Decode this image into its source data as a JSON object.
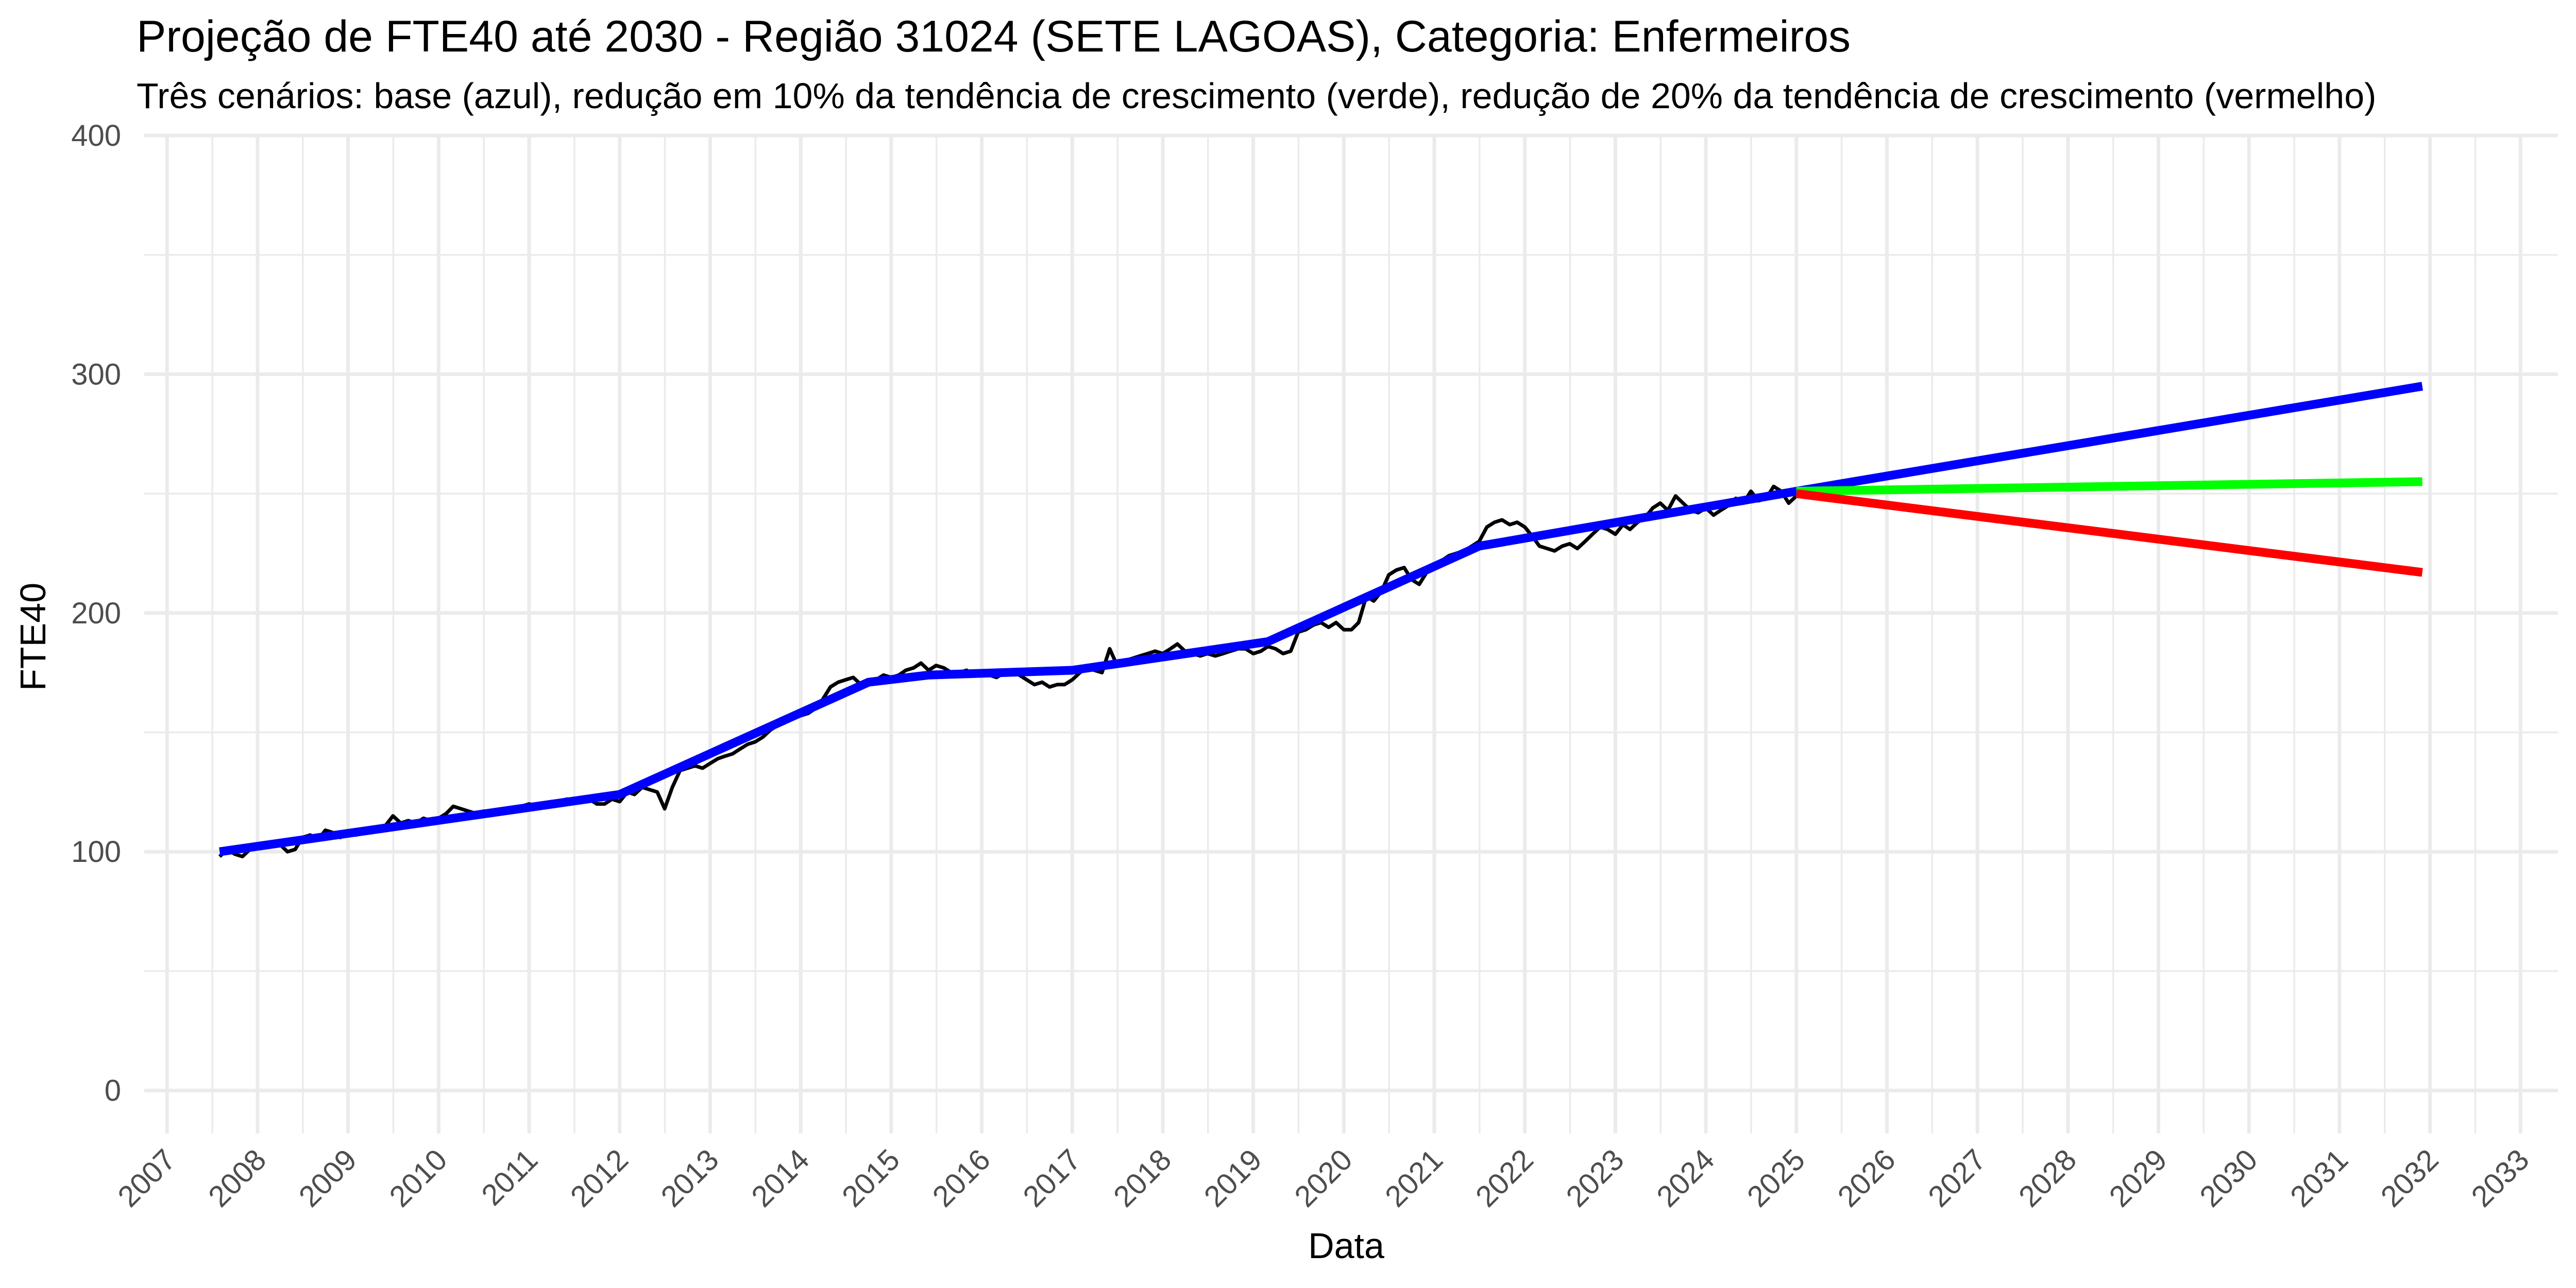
{
  "chart_data": {
    "type": "line",
    "title": "Projeção de FTE40 até 2030 - Região 31024 (SETE LAGOAS), Categoria: Enfermeiros",
    "subtitle": "Três cenários: base (azul), redução em 10% da tendência de crescimento (verde), redução de 20% da tendência de crescimento (vermelho)",
    "xlabel": "Data",
    "ylabel": "FTE40",
    "xlim": [
      "2006-10-01",
      "2033-06-01"
    ],
    "ylim": [
      -18,
      400
    ],
    "x_ticks": [
      "2007",
      "2008",
      "2009",
      "2010",
      "2011",
      "2012",
      "2013",
      "2014",
      "2015",
      "2016",
      "2017",
      "2018",
      "2019",
      "2020",
      "2021",
      "2022",
      "2023",
      "2024",
      "2025",
      "2026",
      "2027",
      "2028",
      "2029",
      "2030",
      "2031",
      "2032",
      "2033"
    ],
    "y_ticks": [
      0,
      100,
      200,
      300,
      400
    ],
    "grid": true,
    "legend": "none",
    "series": [
      {
        "color": "#000000",
        "points": [
          [
            "2007-08-01",
            98
          ],
          [
            "2007-09-01",
            101
          ],
          [
            "2007-10-01",
            99
          ],
          [
            "2007-11-01",
            98
          ],
          [
            "2007-12-01",
            101
          ],
          [
            "2008-01-01",
            103
          ],
          [
            "2008-02-01",
            102
          ],
          [
            "2008-03-01",
            104
          ],
          [
            "2008-04-01",
            103
          ],
          [
            "2008-05-01",
            100
          ],
          [
            "2008-06-01",
            101
          ],
          [
            "2008-07-01",
            106
          ],
          [
            "2008-08-01",
            107
          ],
          [
            "2008-09-01",
            105
          ],
          [
            "2008-10-01",
            109
          ],
          [
            "2008-11-01",
            108
          ],
          [
            "2008-12-01",
            106
          ],
          [
            "2009-01-01",
            108
          ],
          [
            "2009-02-01",
            107
          ],
          [
            "2009-03-01",
            108
          ],
          [
            "2009-04-01",
            110
          ],
          [
            "2009-05-01",
            109
          ],
          [
            "2009-06-01",
            111
          ],
          [
            "2009-07-01",
            115
          ],
          [
            "2009-08-01",
            112
          ],
          [
            "2009-09-01",
            113
          ],
          [
            "2009-10-01",
            112
          ],
          [
            "2009-11-01",
            114
          ],
          [
            "2009-12-01",
            113
          ],
          [
            "2010-01-01",
            114
          ],
          [
            "2010-02-01",
            116
          ],
          [
            "2010-03-01",
            119
          ],
          [
            "2010-04-01",
            118
          ],
          [
            "2010-05-01",
            117
          ],
          [
            "2010-06-01",
            116
          ],
          [
            "2010-07-01",
            117
          ],
          [
            "2010-08-01",
            116
          ],
          [
            "2010-09-01",
            117
          ],
          [
            "2010-10-01",
            118
          ],
          [
            "2010-11-01",
            118
          ],
          [
            "2010-12-01",
            119
          ],
          [
            "2011-01-01",
            120
          ],
          [
            "2011-02-01",
            119
          ],
          [
            "2011-03-01",
            119
          ],
          [
            "2011-04-01",
            121
          ],
          [
            "2011-05-01",
            121
          ],
          [
            "2011-06-01",
            122
          ],
          [
            "2011-07-01",
            122
          ],
          [
            "2011-08-01",
            121
          ],
          [
            "2011-09-01",
            122
          ],
          [
            "2011-10-01",
            120
          ],
          [
            "2011-11-01",
            120
          ],
          [
            "2011-12-01",
            122
          ],
          [
            "2012-01-01",
            121
          ],
          [
            "2012-02-01",
            125
          ],
          [
            "2012-03-01",
            124
          ],
          [
            "2012-04-01",
            127
          ],
          [
            "2012-05-01",
            126
          ],
          [
            "2012-06-01",
            125
          ],
          [
            "2012-07-01",
            118
          ],
          [
            "2012-08-01",
            127
          ],
          [
            "2012-09-01",
            134
          ],
          [
            "2012-10-01",
            135
          ],
          [
            "2012-11-01",
            136
          ],
          [
            "2012-12-01",
            135
          ],
          [
            "2013-01-01",
            137
          ],
          [
            "2013-02-01",
            139
          ],
          [
            "2013-03-01",
            140
          ],
          [
            "2013-04-01",
            141
          ],
          [
            "2013-05-01",
            143
          ],
          [
            "2013-06-01",
            145
          ],
          [
            "2013-07-01",
            146
          ],
          [
            "2013-08-01",
            148
          ],
          [
            "2013-09-01",
            151
          ],
          [
            "2013-10-01",
            153
          ],
          [
            "2013-11-01",
            155
          ],
          [
            "2013-12-01",
            156
          ],
          [
            "2014-01-01",
            157
          ],
          [
            "2014-02-01",
            158
          ],
          [
            "2014-03-01",
            160
          ],
          [
            "2014-04-01",
            164
          ],
          [
            "2014-05-01",
            169
          ],
          [
            "2014-06-01",
            171
          ],
          [
            "2014-07-01",
            172
          ],
          [
            "2014-08-01",
            173
          ],
          [
            "2014-09-01",
            170
          ],
          [
            "2014-10-01",
            171
          ],
          [
            "2014-11-01",
            172
          ],
          [
            "2014-12-01",
            174
          ],
          [
            "2015-01-01",
            173
          ],
          [
            "2015-02-01",
            174
          ],
          [
            "2015-03-01",
            176
          ],
          [
            "2015-04-01",
            177
          ],
          [
            "2015-05-01",
            179
          ],
          [
            "2015-06-01",
            176
          ],
          [
            "2015-07-01",
            178
          ],
          [
            "2015-08-01",
            177
          ],
          [
            "2015-09-01",
            175
          ],
          [
            "2015-10-01",
            175
          ],
          [
            "2015-11-01",
            176
          ],
          [
            "2015-12-01",
            174
          ],
          [
            "2016-01-01",
            175
          ],
          [
            "2016-02-01",
            174
          ],
          [
            "2016-03-01",
            173
          ],
          [
            "2016-04-01",
            175
          ],
          [
            "2016-05-01",
            176
          ],
          [
            "2016-06-01",
            174
          ],
          [
            "2016-07-01",
            172
          ],
          [
            "2016-08-01",
            170
          ],
          [
            "2016-09-01",
            171
          ],
          [
            "2016-10-01",
            169
          ],
          [
            "2016-11-01",
            170
          ],
          [
            "2016-12-01",
            170
          ],
          [
            "2017-01-01",
            172
          ],
          [
            "2017-02-01",
            175
          ],
          [
            "2017-03-01",
            177
          ],
          [
            "2017-04-01",
            176
          ],
          [
            "2017-05-01",
            175
          ],
          [
            "2017-06-01",
            185
          ],
          [
            "2017-07-01",
            178
          ],
          [
            "2017-08-01",
            180
          ],
          [
            "2017-09-01",
            181
          ],
          [
            "2017-10-01",
            182
          ],
          [
            "2017-11-01",
            183
          ],
          [
            "2017-12-01",
            184
          ],
          [
            "2018-01-01",
            183
          ],
          [
            "2018-02-01",
            185
          ],
          [
            "2018-03-01",
            187
          ],
          [
            "2018-04-01",
            184
          ],
          [
            "2018-05-01",
            183
          ],
          [
            "2018-06-01",
            182
          ],
          [
            "2018-07-01",
            183
          ],
          [
            "2018-08-01",
            182
          ],
          [
            "2018-09-01",
            183
          ],
          [
            "2018-10-01",
            184
          ],
          [
            "2018-11-01",
            185
          ],
          [
            "2018-12-01",
            185
          ],
          [
            "2019-01-01",
            183
          ],
          [
            "2019-02-01",
            184
          ],
          [
            "2019-03-01",
            186
          ],
          [
            "2019-04-01",
            185
          ],
          [
            "2019-05-01",
            183
          ],
          [
            "2019-06-01",
            184
          ],
          [
            "2019-07-01",
            192
          ],
          [
            "2019-08-01",
            193
          ],
          [
            "2019-09-01",
            195
          ],
          [
            "2019-10-01",
            196
          ],
          [
            "2019-11-01",
            194
          ],
          [
            "2019-12-01",
            196
          ],
          [
            "2020-01-01",
            193
          ],
          [
            "2020-02-01",
            193
          ],
          [
            "2020-03-01",
            196
          ],
          [
            "2020-04-01",
            207
          ],
          [
            "2020-05-01",
            205
          ],
          [
            "2020-06-01",
            209
          ],
          [
            "2020-07-01",
            216
          ],
          [
            "2020-08-01",
            218
          ],
          [
            "2020-09-01",
            219
          ],
          [
            "2020-10-01",
            214
          ],
          [
            "2020-11-01",
            212
          ],
          [
            "2020-12-01",
            217
          ],
          [
            "2021-01-01",
            220
          ],
          [
            "2021-02-01",
            222
          ],
          [
            "2021-03-01",
            224
          ],
          [
            "2021-04-01",
            225
          ],
          [
            "2021-05-01",
            226
          ],
          [
            "2021-06-01",
            228
          ],
          [
            "2021-07-01",
            230
          ],
          [
            "2021-08-01",
            236
          ],
          [
            "2021-09-01",
            238
          ],
          [
            "2021-10-01",
            239
          ],
          [
            "2021-11-01",
            237
          ],
          [
            "2021-12-01",
            238
          ],
          [
            "2022-01-01",
            236
          ],
          [
            "2022-02-01",
            232
          ],
          [
            "2022-03-01",
            228
          ],
          [
            "2022-04-01",
            227
          ],
          [
            "2022-05-01",
            226
          ],
          [
            "2022-06-01",
            228
          ],
          [
            "2022-07-01",
            229
          ],
          [
            "2022-08-01",
            227
          ],
          [
            "2022-09-01",
            230
          ],
          [
            "2022-10-01",
            233
          ],
          [
            "2022-11-01",
            236
          ],
          [
            "2022-12-01",
            235
          ],
          [
            "2023-01-01",
            233
          ],
          [
            "2023-02-01",
            237
          ],
          [
            "2023-03-01",
            235
          ],
          [
            "2023-04-01",
            238
          ],
          [
            "2023-05-01",
            240
          ],
          [
            "2023-06-01",
            244
          ],
          [
            "2023-07-01",
            246
          ],
          [
            "2023-08-01",
            243
          ],
          [
            "2023-09-01",
            249
          ],
          [
            "2023-10-01",
            246
          ],
          [
            "2023-11-01",
            243
          ],
          [
            "2023-12-01",
            242
          ],
          [
            "2024-01-01",
            244
          ],
          [
            "2024-02-01",
            241
          ],
          [
            "2024-03-01",
            243
          ],
          [
            "2024-04-01",
            245
          ],
          [
            "2024-05-01",
            248
          ],
          [
            "2024-06-01",
            246
          ],
          [
            "2024-07-01",
            251
          ],
          [
            "2024-08-01",
            247
          ],
          [
            "2024-09-01",
            248
          ],
          [
            "2024-10-01",
            253
          ],
          [
            "2024-11-01",
            251
          ],
          [
            "2024-12-01",
            246
          ],
          [
            "2025-01-01",
            249
          ]
        ]
      },
      {
        "color": "#0000ff",
        "points": [
          [
            "2007-08-01",
            100
          ],
          [
            "2012-01-01",
            124
          ],
          [
            "2014-10-01",
            171
          ],
          [
            "2015-06-01",
            174
          ],
          [
            "2017-01-01",
            176
          ],
          [
            "2019-03-01",
            188
          ],
          [
            "2021-07-01",
            228
          ],
          [
            "2025-01-01",
            251
          ],
          [
            "2031-12-01",
            295
          ]
        ]
      },
      {
        "color": "#00ff00",
        "points": [
          [
            "2025-01-01",
            251
          ],
          [
            "2031-12-01",
            255
          ]
        ]
      },
      {
        "color": "#ff0000",
        "points": [
          [
            "2025-01-01",
            250
          ],
          [
            "2031-12-01",
            217
          ]
        ]
      }
    ]
  }
}
